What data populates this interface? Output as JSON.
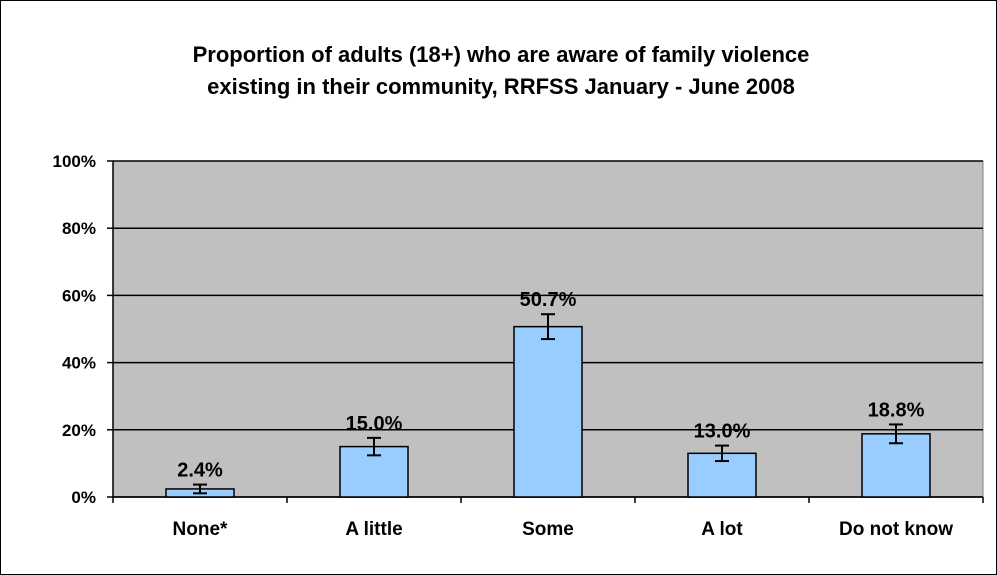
{
  "chart_data": {
    "type": "bar",
    "title_lines": [
      "Proportion of adults (18+) who are aware of family violence",
      "existing in their community, RRFSS January - June 2008"
    ],
    "xlabel": "",
    "ylabel": "",
    "categories": [
      "None*",
      "A little",
      "Some",
      "A lot",
      "Do not know"
    ],
    "values": [
      2.4,
      15.0,
      50.7,
      13.0,
      18.8
    ],
    "data_labels": [
      "2.4%",
      "15.0%",
      "50.7%",
      "13.0%",
      "18.8%"
    ],
    "error_bars": [
      {
        "low": 1.1,
        "high": 3.7
      },
      {
        "low": 12.4,
        "high": 17.6
      },
      {
        "low": 47.0,
        "high": 54.4
      },
      {
        "low": 10.7,
        "high": 15.3
      },
      {
        "low": 16.0,
        "high": 21.6
      }
    ],
    "ylim": [
      0,
      100
    ],
    "yticks": [
      0,
      20,
      40,
      60,
      80,
      100
    ],
    "ytick_labels": [
      "0%",
      "20%",
      "40%",
      "60%",
      "80%",
      "100%"
    ],
    "grid": true,
    "legend": "none",
    "colors": {
      "plot_background": "#c0c0c0",
      "bar_fill": "#99ccff",
      "bar_stroke": "#000000",
      "gridline": "#000000"
    }
  }
}
